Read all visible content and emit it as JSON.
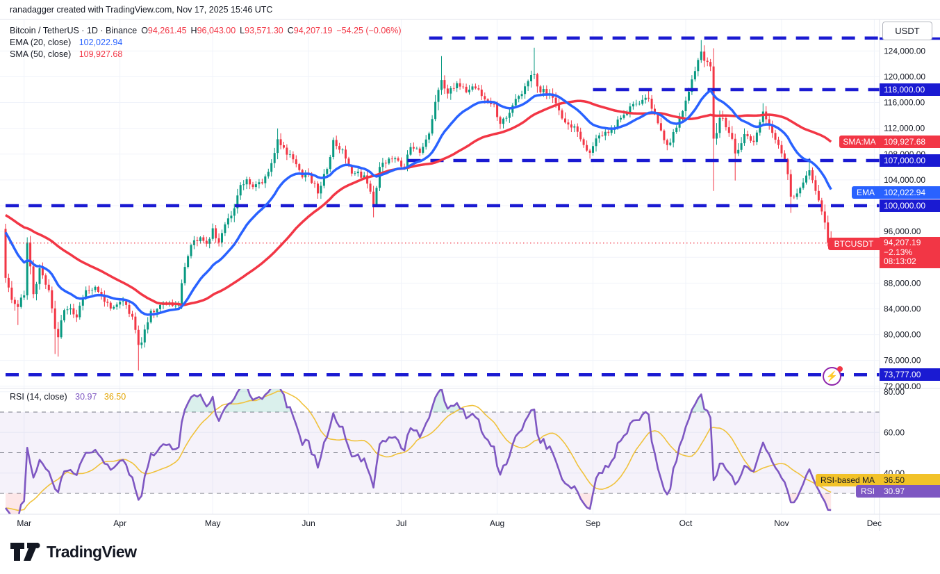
{
  "header": {
    "credit": "ranadagger created with TradingView.com, Nov 17, 2025 15:46 UTC"
  },
  "legend": {
    "symbol": "Bitcoin / TetherUS · 1D · Binance",
    "ohlc": [
      {
        "letter": "O",
        "value": "94,261.45"
      },
      {
        "letter": "H",
        "value": "96,043.00"
      },
      {
        "letter": "L",
        "value": "93,571.30"
      },
      {
        "letter": "C",
        "value": "94,207.19"
      }
    ],
    "change": "−54.25 (−0.06%)",
    "ema_label": "EMA (20, close)",
    "ema_value": "102,022.94",
    "sma_label": "SMA (50, close)",
    "sma_value": "109,927.68"
  },
  "rsi_legend": {
    "label": "RSI (14, close)",
    "rsi_value": "30.97",
    "ma_value": "36.50"
  },
  "axis": {
    "currency_button": "USDT",
    "price_ticks": [
      {
        "price": 124000,
        "label": "124,000.00"
      },
      {
        "price": 120000,
        "label": "120,000.00"
      },
      {
        "price": 116000,
        "label": "116,000.00"
      },
      {
        "price": 112000,
        "label": "112,000.00"
      },
      {
        "price": 108000,
        "label": "108,000.00"
      },
      {
        "price": 104000,
        "label": "104,000.00"
      },
      {
        "price": 100000,
        "label": "100,000.00"
      },
      {
        "price": 96000,
        "label": "96,000.00"
      },
      {
        "price": 88000,
        "label": "88,000.00"
      },
      {
        "price": 84000,
        "label": "84,000.00"
      },
      {
        "price": 80000,
        "label": "80,000.00"
      },
      {
        "price": 76000,
        "label": "76,000.00"
      },
      {
        "price": 72000,
        "label": "72,000.00"
      }
    ],
    "rsi_ticks": [
      {
        "value": 80,
        "label": "80.00"
      },
      {
        "value": 60,
        "label": "60.00"
      },
      {
        "value": 40,
        "label": "40.00"
      }
    ],
    "level_badges": [
      {
        "price": 118000,
        "value": "118,000.00",
        "kind": "level"
      },
      {
        "price": 107000,
        "value": "107,000.00",
        "kind": "level"
      },
      {
        "price": 100000,
        "value": "100,000.00",
        "kind": "level"
      },
      {
        "price": 73777,
        "value": "73,777.00",
        "kind": "level"
      }
    ],
    "sma_badge": {
      "label": "SMA:MA",
      "value": "109,927.68",
      "price": 109927.68
    },
    "ema_badge": {
      "label": "EMA",
      "value": "102,022.94",
      "price": 102022.94
    },
    "symbol_badge": {
      "label": "BTCUSDT",
      "value": "94,207.19",
      "pct": "−2.13%",
      "countdown": "08:13:02",
      "price": 94207.19
    },
    "rsi_ma_badge": {
      "label": "RSI-based MA",
      "value": "36.50",
      "level": 36.5
    },
    "rsi_badge": {
      "label": "RSI",
      "value": "30.97",
      "level": 30.97
    }
  },
  "x_axis": {
    "months": [
      {
        "label": "Mar",
        "day": 6
      },
      {
        "label": "Apr",
        "day": 37
      },
      {
        "label": "May",
        "day": 67
      },
      {
        "label": "Jun",
        "day": 98
      },
      {
        "label": "Jul",
        "day": 128
      },
      {
        "label": "Aug",
        "day": 159
      },
      {
        "label": "Sep",
        "day": 190
      },
      {
        "label": "Oct",
        "day": 220
      },
      {
        "label": "Nov",
        "day": 251
      },
      {
        "label": "Dec",
        "day": 281
      }
    ]
  },
  "footer": {
    "logo_text": "TradingView"
  },
  "colors": {
    "up": "#089981",
    "down": "#f23645",
    "ema": "#2962ff",
    "sma": "#f23645",
    "level_blue": "#1a1ad2",
    "current_red": "#f23645",
    "rsi": "#7e57c2",
    "rsi_ma": "#f0c23c",
    "badge_yellow": "#f2c229",
    "badge_ema": "#2962ff",
    "grid": "#f0f3fa",
    "text": "#131722",
    "muted": "#787b86",
    "border": "#e0e3eb",
    "rsi_band_fill": "rgba(126,87,194,0.08)",
    "rsi_over_fill": "rgba(8,153,129,0.15)",
    "rsi_under_fill": "rgba(242,54,69,0.12)"
  },
  "chart_data": {
    "type": "candlestick",
    "title": "Bitcoin / TetherUS · 1D · Binance (BTCUSDT)",
    "timeframe": "1D",
    "x_range": "late Feb 2025 (day 0) to Nov 17 2025 (day 267)",
    "ylim": [
      71000,
      127500
    ],
    "last_candle": {
      "open": 94261.45,
      "high": 96043.0,
      "low": 93571.3,
      "close": 94207.19,
      "change": -54.25,
      "change_pct": -0.06
    },
    "horizontal_levels": [
      {
        "price": 126000,
        "start_day": 137,
        "style": "dashed-blue"
      },
      {
        "price": 118000,
        "start_day": 190,
        "style": "dashed-blue"
      },
      {
        "price": 107000,
        "start_day": 130,
        "style": "dashed-blue"
      },
      {
        "price": 100000,
        "start_day": 0,
        "style": "dashed-blue"
      },
      {
        "price": 73777,
        "start_day": 0,
        "style": "dashed-blue"
      }
    ],
    "current_price_line": 94207.19,
    "indicators": {
      "ema": {
        "period": 20,
        "current": 102022.94,
        "seed": 96600
      },
      "sma": {
        "period": 50,
        "current": 109927.68,
        "prehistory_start": 102000,
        "prehistory_step": -130
      },
      "rsi": {
        "period": 14,
        "current": 30.97,
        "overbought": 70,
        "oversold": 30,
        "mid": 50
      },
      "rsi_ma": {
        "period": 14,
        "current": 36.5
      }
    },
    "open_first": 96400,
    "price_anchors": [
      [
        0,
        88800,
        3000,
        null,
        97200
      ],
      [
        2,
        85400,
        2600
      ],
      [
        4,
        84300,
        2400,
        81500
      ],
      [
        6,
        86100,
        2000
      ],
      [
        7,
        94300,
        2600,
        null,
        95100
      ],
      [
        9,
        86300,
        2200
      ],
      [
        11,
        90300,
        1800
      ],
      [
        14,
        86900,
        1800
      ],
      [
        16,
        80900,
        2200,
        77000
      ],
      [
        17,
        79600,
        2200,
        76600
      ],
      [
        19,
        83800,
        1800
      ],
      [
        21,
        84100,
        1500
      ],
      [
        23,
        82700,
        1500
      ],
      [
        26,
        86900,
        1400
      ],
      [
        29,
        87400,
        1400
      ],
      [
        32,
        85100,
        1500
      ],
      [
        35,
        84300,
        1500
      ],
      [
        37,
        85100,
        1400
      ],
      [
        39,
        84600,
        1500
      ],
      [
        41,
        82800,
        1600
      ],
      [
        43,
        78400,
        2800,
        74420
      ],
      [
        45,
        80800,
        2200
      ],
      [
        47,
        83700,
        1900
      ],
      [
        50,
        84600,
        1400
      ],
      [
        53,
        85000,
        1300
      ],
      [
        56,
        84700,
        1300
      ],
      [
        58,
        90500,
        1900
      ],
      [
        60,
        93900,
        1700
      ],
      [
        63,
        95100,
        1400
      ],
      [
        65,
        94100,
        1300
      ],
      [
        67,
        96500,
        1400
      ],
      [
        69,
        94300,
        1500
      ],
      [
        71,
        97100,
        1500
      ],
      [
        74,
        99600,
        1900
      ],
      [
        76,
        103200,
        1800
      ],
      [
        78,
        104100,
        1500
      ],
      [
        80,
        102900,
        1400
      ],
      [
        83,
        103500,
        1300
      ],
      [
        86,
        106600,
        1600
      ],
      [
        88,
        110300,
        2000,
        null,
        111980
      ],
      [
        90,
        109000,
        1700
      ],
      [
        93,
        107200,
        1500
      ],
      [
        96,
        104400,
        1400
      ],
      [
        98,
        105000,
        1400
      ],
      [
        101,
        101900,
        1700
      ],
      [
        104,
        105700,
        1500
      ],
      [
        106,
        110200,
        1700
      ],
      [
        109,
        108700,
        1400
      ],
      [
        112,
        105000,
        1700
      ],
      [
        116,
        104700,
        1400
      ],
      [
        119,
        100100,
        2000,
        98200
      ],
      [
        121,
        106000,
        1700
      ],
      [
        124,
        107300,
        1300
      ],
      [
        127,
        107000,
        1200
      ],
      [
        129,
        105800,
        1300
      ],
      [
        131,
        109100,
        1400
      ],
      [
        134,
        108200,
        1200
      ],
      [
        137,
        111200,
        1500
      ],
      [
        139,
        116100,
        2200
      ],
      [
        141,
        119500,
        2500,
        null,
        123200
      ],
      [
        143,
        117400,
        1900
      ],
      [
        146,
        119000,
        1700
      ],
      [
        149,
        117600,
        1500
      ],
      [
        152,
        118200,
        1400
      ],
      [
        155,
        116500,
        1400
      ],
      [
        158,
        115700,
        1400
      ],
      [
        160,
        112700,
        1900,
        111900
      ],
      [
        163,
        114400,
        1500
      ],
      [
        166,
        117000,
        1500
      ],
      [
        169,
        119300,
        1700
      ],
      [
        171,
        120400,
        2000,
        null,
        124500
      ],
      [
        173,
        117600,
        1900
      ],
      [
        176,
        117400,
        1400
      ],
      [
        179,
        114800,
        1600
      ],
      [
        181,
        112900,
        1700
      ],
      [
        184,
        112300,
        1500
      ],
      [
        186,
        110300,
        1600
      ],
      [
        189,
        108200,
        1700,
        107300
      ],
      [
        192,
        110900,
        1500
      ],
      [
        195,
        111300,
        1400
      ],
      [
        199,
        113600,
        1300
      ],
      [
        202,
        115400,
        1400
      ],
      [
        205,
        115800,
        1300
      ],
      [
        208,
        116600,
        1400,
        null,
        117900
      ],
      [
        211,
        112800,
        1500
      ],
      [
        214,
        109400,
        1700,
        108600
      ],
      [
        217,
        112100,
        1500
      ],
      [
        220,
        116300,
        1700
      ],
      [
        222,
        119600,
        1800
      ],
      [
        224,
        122600,
        1900
      ],
      [
        225,
        123900,
        2000,
        null,
        125700
      ],
      [
        227,
        122300,
        1800
      ],
      [
        228,
        121600,
        1800
      ],
      [
        229,
        110400,
        5200,
        102300
      ],
      [
        231,
        113600,
        2300
      ],
      [
        234,
        111300,
        1900
      ],
      [
        236,
        108100,
        2000,
        103900
      ],
      [
        239,
        111100,
        1700
      ],
      [
        242,
        109900,
        1500
      ],
      [
        245,
        114600,
        1700,
        null,
        115900
      ],
      [
        248,
        111300,
        1600
      ],
      [
        250,
        109400,
        1500
      ],
      [
        252,
        107200,
        1700
      ],
      [
        254,
        101400,
        2600,
        98900
      ],
      [
        256,
        101900,
        1900
      ],
      [
        258,
        103600,
        1700
      ],
      [
        260,
        105500,
        1600,
        null,
        107400
      ],
      [
        262,
        102300,
        1900
      ],
      [
        264,
        99100,
        2100
      ],
      [
        265,
        97400,
        2200
      ],
      [
        266,
        94261,
        2000,
        93700
      ],
      [
        267,
        94207,
        1800,
        93571,
        96043
      ]
    ]
  }
}
